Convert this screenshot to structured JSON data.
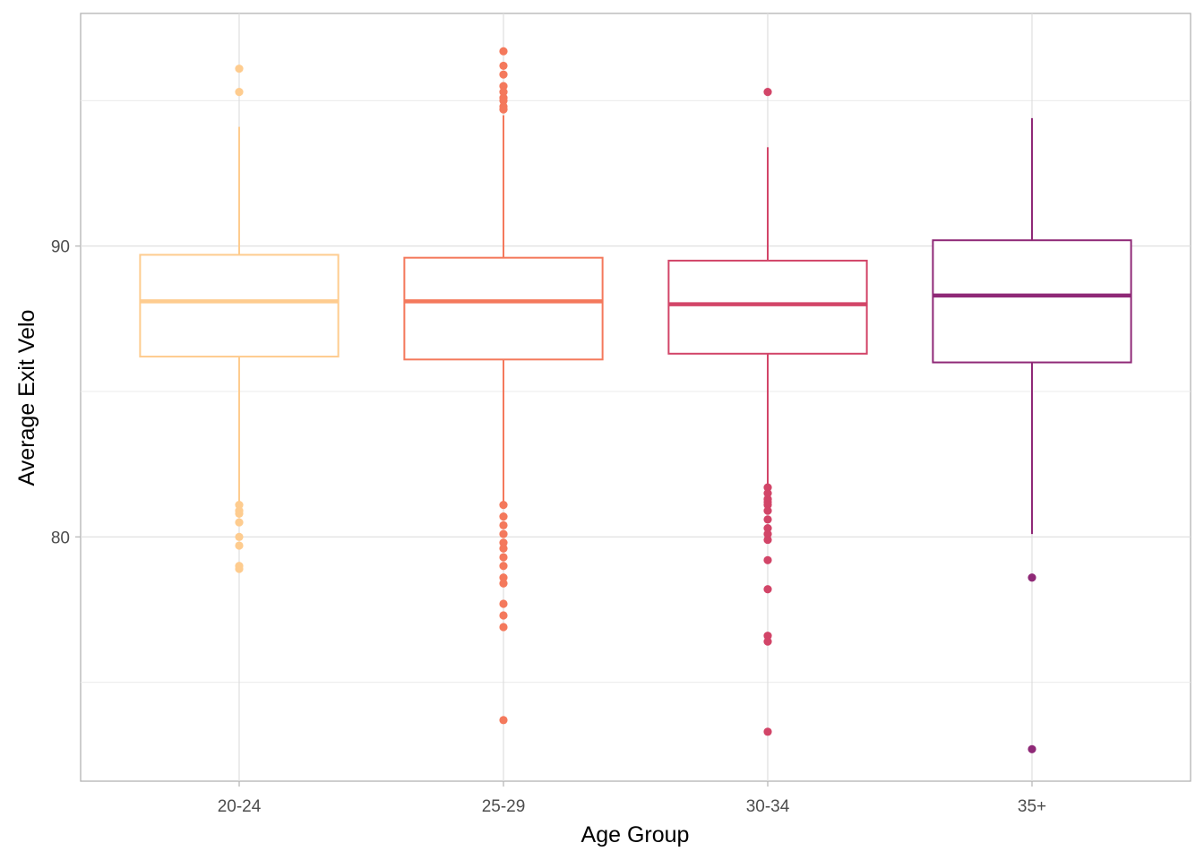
{
  "chart_data": {
    "type": "boxplot",
    "title": "",
    "xlabel": "Age Group",
    "ylabel": "Average Exit Velo",
    "ylim": [
      71.6,
      98.0
    ],
    "y_ticks": [
      80,
      90
    ],
    "y_minor_gridlines": [
      75,
      85,
      95
    ],
    "grid": true,
    "legend": "none",
    "categories": [
      "20-24",
      "25-29",
      "30-34",
      "35+"
    ],
    "colors": [
      "#FECC8F",
      "#F4795C",
      "#D24568",
      "#8F2977"
    ],
    "series": [
      {
        "category": "20-24",
        "whisker_low": 81.1,
        "q1": 86.2,
        "median": 88.1,
        "q3": 89.7,
        "whisker_high": 94.1,
        "outliers": [
          96.1,
          95.3,
          81.1,
          80.9,
          80.8,
          80.5,
          80.0,
          79.7,
          79.0,
          78.9
        ]
      },
      {
        "category": "25-29",
        "whisker_low": 81.2,
        "q1": 86.1,
        "median": 88.1,
        "q3": 89.6,
        "whisker_high": 94.5,
        "outliers": [
          96.7,
          96.2,
          95.9,
          95.5,
          95.3,
          95.1,
          95.0,
          94.8,
          94.7,
          81.1,
          80.7,
          80.4,
          80.1,
          79.8,
          79.6,
          79.3,
          79.0,
          78.6,
          78.4,
          77.7,
          77.3,
          76.9,
          73.7
        ]
      },
      {
        "category": "30-34",
        "whisker_low": 81.8,
        "q1": 86.3,
        "median": 88.0,
        "q3": 89.5,
        "whisker_high": 93.4,
        "outliers": [
          95.3,
          81.7,
          81.5,
          81.3,
          81.2,
          81.1,
          80.9,
          80.6,
          80.3,
          80.1,
          79.9,
          79.2,
          78.2,
          76.6,
          76.4,
          73.3
        ]
      },
      {
        "category": "35+",
        "whisker_low": 80.1,
        "q1": 86.0,
        "median": 88.3,
        "q3": 90.2,
        "whisker_high": 94.4,
        "outliers": [
          78.6,
          72.7
        ]
      }
    ]
  }
}
